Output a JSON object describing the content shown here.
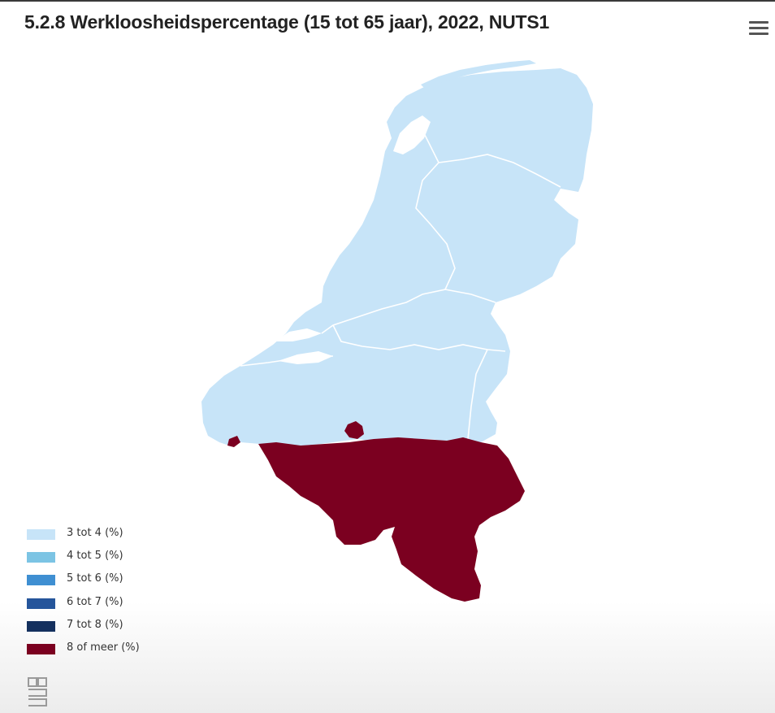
{
  "title": "5.2.8 Werkloosheidspercentage (15 tot 65 jaar), 2022, NUTS1",
  "menu_icon": "hamburger-menu-icon",
  "logo_icon": "cbs-logo-icon",
  "colors": {
    "class_3_4": "#c7e4f8",
    "class_4_5": "#7cc4e4",
    "class_5_6": "#3f8fd2",
    "class_6_7": "#25559b",
    "class_7_8": "#14305e",
    "class_8_plus": "#7b0020",
    "border": "#ffffff"
  },
  "legend": [
    {
      "label": "3 tot 4 (%)",
      "color": "#c7e4f8"
    },
    {
      "label": "4 tot 5 (%)",
      "color": "#7cc4e4"
    },
    {
      "label": "5 tot 6 (%)",
      "color": "#3f8fd2"
    },
    {
      "label": "6 tot 7 (%)",
      "color": "#25559b"
    },
    {
      "label": "7 tot 8 (%)",
      "color": "#14305e"
    },
    {
      "label": "8 of meer (%)",
      "color": "#7b0020"
    }
  ],
  "regions": [
    {
      "id": "noord-nederland",
      "class": "3 tot 4 (%)",
      "color": "#c7e4f8"
    },
    {
      "id": "oost-nederland",
      "class": "3 tot 4 (%)",
      "color": "#c7e4f8"
    },
    {
      "id": "west-nederland",
      "class": "3 tot 4 (%)",
      "color": "#c7e4f8"
    },
    {
      "id": "zuid-nederland",
      "class": "3 tot 4 (%)",
      "color": "#c7e4f8"
    },
    {
      "id": "vlaams-gewest",
      "class": "3 tot 4 (%)",
      "color": "#c7e4f8"
    },
    {
      "id": "brussels-gewest",
      "class": "8 of meer (%)",
      "color": "#7b0020"
    },
    {
      "id": "waals-gewest",
      "class": "8 of meer (%)",
      "color": "#7b0020"
    }
  ]
}
